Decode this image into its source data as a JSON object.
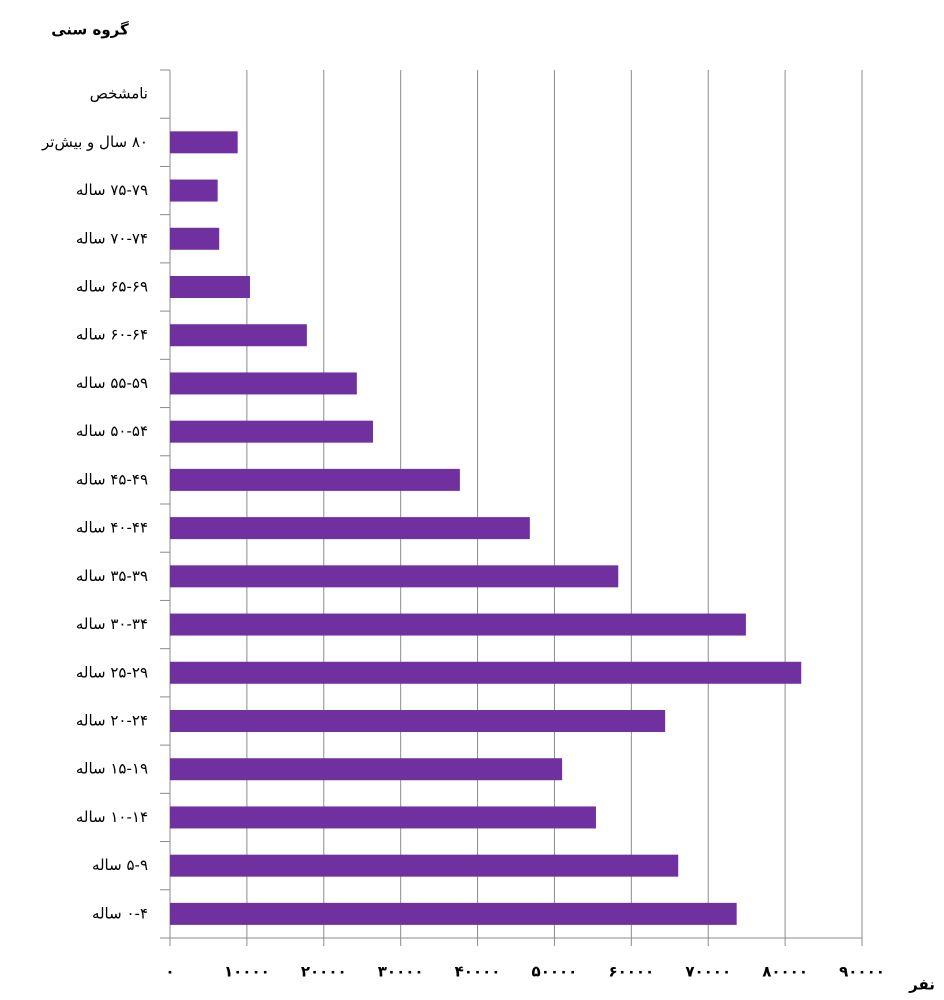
{
  "chart_data": {
    "type": "bar",
    "orientation": "horizontal",
    "title": "گروه سنی",
    "x_label": "نفر",
    "categories": [
      "نامشخص",
      "۸۰ سال و بیش‌تر",
      "۷۵-۷۹ ساله",
      "۷۰-۷۴ ساله",
      "۶۵-۶۹ ساله",
      "۶۰-۶۴ ساله",
      "۵۵-۵۹ ساله",
      "۵۰-۵۴ ساله",
      "۴۵-۴۹ ساله",
      "۴۰-۴۴ ساله",
      "۳۵-۳۹ ساله",
      "۳۰-۳۴ ساله",
      "۲۵-۲۹ ساله",
      "۲۰-۲۴ ساله",
      "۱۵-۱۹ ساله",
      "۱۰-۱۴ ساله",
      "۵-۹ ساله",
      "۰-۴ ساله"
    ],
    "values": [
      0,
      8800,
      6200,
      6400,
      10400,
      17800,
      24300,
      26400,
      37700,
      46800,
      58300,
      74900,
      82100,
      64400,
      51000,
      55400,
      66100,
      73700
    ],
    "color": "#7030a0",
    "xlim": [
      0,
      90000
    ],
    "xticks": [
      {
        "value": 0,
        "label": "۰"
      },
      {
        "value": 10000,
        "label": "۱۰۰۰۰"
      },
      {
        "value": 20000,
        "label": "۲۰۰۰۰"
      },
      {
        "value": 30000,
        "label": "۳۰۰۰۰"
      },
      {
        "value": 40000,
        "label": "۴۰۰۰۰"
      },
      {
        "value": 50000,
        "label": "۵۰۰۰۰"
      },
      {
        "value": 60000,
        "label": "۶۰۰۰۰"
      },
      {
        "value": 70000,
        "label": "۷۰۰۰۰"
      },
      {
        "value": 80000,
        "label": "۸۰۰۰۰"
      },
      {
        "value": 90000,
        "label": "۹۰۰۰۰"
      }
    ],
    "grid": true
  }
}
